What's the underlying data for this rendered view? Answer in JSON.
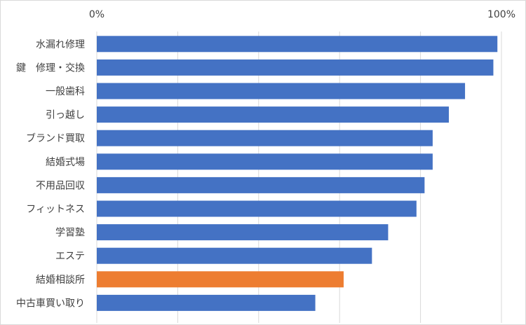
{
  "chart_data": {
    "type": "bar",
    "orientation": "horizontal",
    "categories": [
      "水漏れ修理",
      "鍵　修理・交換",
      "一般歯科",
      "引っ越し",
      "ブランド買取",
      "結婚式場",
      "不用品回収",
      "フィットネス",
      "学習塾",
      "エステ",
      "結婚相談所",
      "中古車買い取り"
    ],
    "values": [
      99,
      98,
      91,
      87,
      83,
      83,
      81,
      79,
      72,
      68,
      61,
      54
    ],
    "highlight_category": "結婚相談所",
    "x_ticks": [
      "0%",
      "100%"
    ],
    "xlim": [
      0,
      100
    ],
    "grid": true,
    "x_axis_position": "top",
    "colors": {
      "bar": "#4472c4",
      "highlight": "#ed7d31",
      "grid": "#d9d9d9",
      "text": "#404040"
    }
  }
}
